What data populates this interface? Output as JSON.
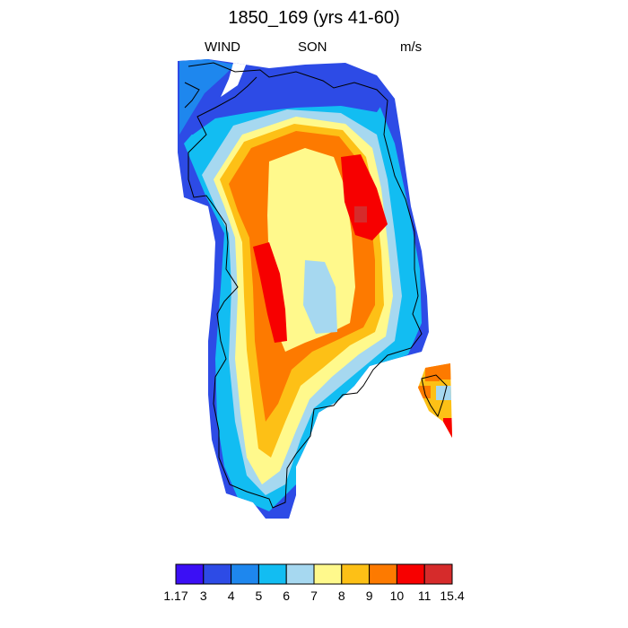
{
  "title": "1850_169 (yrs 41-60)",
  "left_label": "WIND",
  "center_label": "SON",
  "right_label": "m/s",
  "colorbar": {
    "colors": [
      "#3b0ff5",
      "#2d4be6",
      "#1e87ee",
      "#12bdf2",
      "#a6d8f0",
      "#fff98c",
      "#fdc016",
      "#fd7a00",
      "#f70000",
      "#d62b2b"
    ],
    "labels": [
      "1.17",
      "3",
      "4",
      "5",
      "6",
      "7",
      "8",
      "9",
      "10",
      "11",
      "15.4"
    ]
  }
}
